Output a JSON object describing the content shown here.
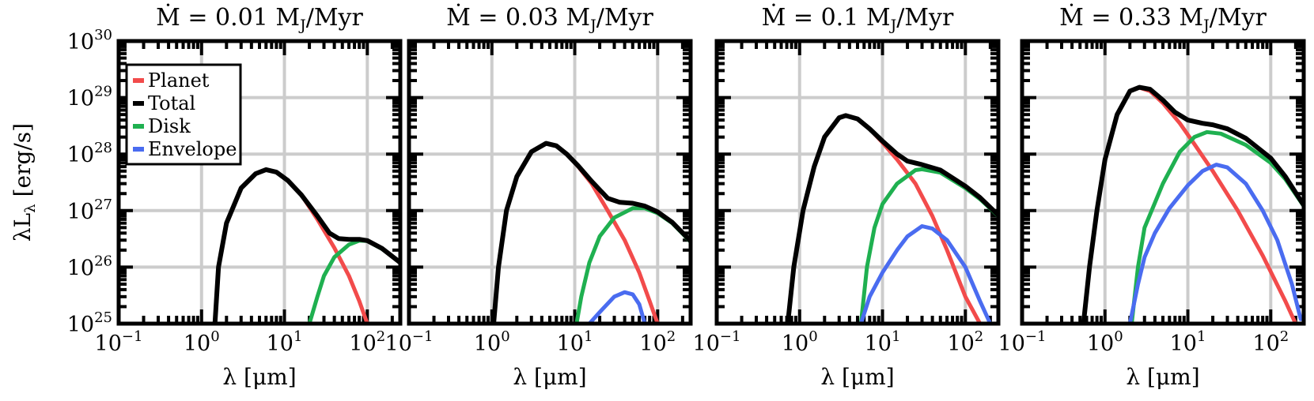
{
  "chart_data": [
    {
      "type": "line",
      "title_prefix": "Ṁ = 0.01",
      "title_unit": "M",
      "title_sub": "J",
      "title_suffix": "/Myr",
      "xlabel": "λ [μm]",
      "ylabel": "λL",
      "ylabel_sub": "λ",
      "ylabel_units": "[erg/s]",
      "xscale": "log",
      "yscale": "log",
      "xlim": [
        0.1,
        250
      ],
      "ylim": [
        1e+25,
        1e+30
      ],
      "xticks": [
        {
          "base": "10",
          "exp": "−1",
          "v": 0.1
        },
        {
          "base": "10",
          "exp": "0",
          "v": 1
        },
        {
          "base": "10",
          "exp": "1",
          "v": 10
        },
        {
          "base": "10",
          "exp": "2",
          "v": 100
        }
      ],
      "yticks": [
        {
          "base": "10",
          "exp": "25",
          "v": 1e+25
        },
        {
          "base": "10",
          "exp": "26",
          "v": 1e+26
        },
        {
          "base": "10",
          "exp": "27",
          "v": 1e+27
        },
        {
          "base": "10",
          "exp": "28",
          "v": 1e+28
        },
        {
          "base": "10",
          "exp": "29",
          "v": 1e+29
        },
        {
          "base": "10",
          "exp": "30",
          "v": 1e+30
        }
      ],
      "grid": true,
      "legend": {
        "position": "top-left",
        "entries": [
          "Planet",
          "Total",
          "Disk",
          "Envelope"
        ]
      },
      "series": [
        {
          "name": "Planet",
          "color": "#f24b4b",
          "points": [
            [
              1.45,
              1e+25
            ],
            [
              1.6,
              1e+26
            ],
            [
              2,
              6e+26
            ],
            [
              3,
              2.5e+27
            ],
            [
              4.5,
              4.5e+27
            ],
            [
              6,
              5.3e+27
            ],
            [
              8,
              4.8e+27
            ],
            [
              11,
              3.4e+27
            ],
            [
              16,
              1.9e+27
            ],
            [
              25,
              7e+26
            ],
            [
              40,
              2.2e+26
            ],
            [
              60,
              7e+25
            ],
            [
              80,
              2.5e+25
            ],
            [
              100,
              1e+25
            ]
          ]
        },
        {
          "name": "Disk",
          "color": "#1fb050",
          "points": [
            [
              20,
              1e+25
            ],
            [
              25,
              3e+25
            ],
            [
              30,
              7e+25
            ],
            [
              40,
              1.5e+26
            ],
            [
              60,
              2.5e+26
            ],
            [
              80,
              2.95e+26
            ],
            [
              100,
              2.9e+26
            ],
            [
              150,
              2.1e+26
            ],
            [
              250,
              1.2e+26
            ]
          ]
        },
        {
          "name": "Envelope",
          "color": "#4a6cf0",
          "points": []
        },
        {
          "name": "Total",
          "color": "#000000",
          "points": [
            [
              1.45,
              1e+25
            ],
            [
              1.6,
              1e+26
            ],
            [
              2,
              6e+26
            ],
            [
              3,
              2.5e+27
            ],
            [
              4.5,
              4.5e+27
            ],
            [
              6,
              5.3e+27
            ],
            [
              8,
              4.8e+27
            ],
            [
              11,
              3.4e+27
            ],
            [
              16,
              1.9e+27
            ],
            [
              25,
              8e+26
            ],
            [
              35,
              4e+26
            ],
            [
              45,
              3.2e+26
            ],
            [
              60,
              3.1e+26
            ],
            [
              80,
              3.1e+26
            ],
            [
              100,
              2.95e+26
            ],
            [
              150,
              2.15e+26
            ],
            [
              250,
              1.2e+26
            ]
          ]
        }
      ]
    },
    {
      "type": "line",
      "title_prefix": "Ṁ = 0.03",
      "title_unit": "M",
      "title_sub": "J",
      "title_suffix": "/Myr",
      "xlabel": "λ [μm]",
      "xscale": "log",
      "yscale": "log",
      "xlim": [
        0.1,
        250
      ],
      "ylim": [
        1e+25,
        1e+30
      ],
      "xticks": [
        {
          "base": "10",
          "exp": "−1",
          "v": 0.1
        },
        {
          "base": "10",
          "exp": "0",
          "v": 1
        },
        {
          "base": "10",
          "exp": "1",
          "v": 10
        },
        {
          "base": "10",
          "exp": "2",
          "v": 100
        }
      ],
      "grid": true,
      "series": [
        {
          "name": "Planet",
          "color": "#f24b4b",
          "points": [
            [
              1.05,
              1e+25
            ],
            [
              1.2,
              1e+26
            ],
            [
              1.5,
              1e+27
            ],
            [
              2,
              4e+27
            ],
            [
              3,
              1.1e+28
            ],
            [
              4.5,
              1.55e+28
            ],
            [
              6,
              1.4e+28
            ],
            [
              8,
              1e+28
            ],
            [
              11,
              6e+27
            ],
            [
              16,
              3e+27
            ],
            [
              25,
              1e+27
            ],
            [
              40,
              3e+26
            ],
            [
              60,
              8e+25
            ],
            [
              80,
              2.5e+25
            ],
            [
              100,
              1e+25
            ]
          ]
        },
        {
          "name": "Disk",
          "color": "#1fb050",
          "points": [
            [
              10.5,
              1e+25
            ],
            [
              12,
              3e+25
            ],
            [
              15,
              1.2e+26
            ],
            [
              20,
              3.5e+26
            ],
            [
              30,
              7.5e+26
            ],
            [
              50,
              1.1e+27
            ],
            [
              70,
              1.1e+27
            ],
            [
              100,
              9e+26
            ],
            [
              150,
              6e+26
            ],
            [
              250,
              2.8e+26
            ]
          ]
        },
        {
          "name": "Envelope",
          "color": "#4a6cf0",
          "points": [
            [
              15,
              1e+25
            ],
            [
              20,
              1.6e+25
            ],
            [
              30,
              3e+25
            ],
            [
              40,
              3.6e+25
            ],
            [
              50,
              3.3e+25
            ],
            [
              60,
              2.2e+25
            ],
            [
              70,
              1e+25
            ]
          ]
        },
        {
          "name": "Total",
          "color": "#000000",
          "points": [
            [
              1.05,
              1e+25
            ],
            [
              1.2,
              1e+26
            ],
            [
              1.5,
              1e+27
            ],
            [
              2,
              4e+27
            ],
            [
              3,
              1.1e+28
            ],
            [
              4.5,
              1.55e+28
            ],
            [
              6,
              1.4e+28
            ],
            [
              8,
              1e+28
            ],
            [
              11,
              6.2e+27
            ],
            [
              16,
              3.3e+27
            ],
            [
              25,
              1.65e+27
            ],
            [
              35,
              1.4e+27
            ],
            [
              50,
              1.35e+27
            ],
            [
              70,
              1.2e+27
            ],
            [
              100,
              9.5e+26
            ],
            [
              150,
              6.2e+26
            ],
            [
              250,
              2.9e+26
            ]
          ]
        }
      ]
    },
    {
      "type": "line",
      "title_prefix": "Ṁ = 0.1",
      "title_unit": "M",
      "title_sub": "J",
      "title_suffix": "/Myr",
      "xlabel": "λ [μm]",
      "xscale": "log",
      "yscale": "log",
      "xlim": [
        0.1,
        250
      ],
      "ylim": [
        1e+25,
        1e+30
      ],
      "xticks": [
        {
          "base": "10",
          "exp": "−1",
          "v": 0.1
        },
        {
          "base": "10",
          "exp": "0",
          "v": 1
        },
        {
          "base": "10",
          "exp": "1",
          "v": 10
        },
        {
          "base": "10",
          "exp": "2",
          "v": 100
        }
      ],
      "grid": true,
      "series": [
        {
          "name": "Planet",
          "color": "#f24b4b",
          "points": [
            [
              0.72,
              1e+25
            ],
            [
              0.85,
              1e+26
            ],
            [
              1.1,
              1e+27
            ],
            [
              1.5,
              6e+27
            ],
            [
              2,
              2e+28
            ],
            [
              3,
              4.4e+28
            ],
            [
              3.6,
              4.8e+28
            ],
            [
              5,
              4.2e+28
            ],
            [
              7,
              2.8e+28
            ],
            [
              10,
              1.6e+28
            ],
            [
              15,
              8e+27
            ],
            [
              25,
              3e+27
            ],
            [
              40,
              8e+26
            ],
            [
              60,
              2e+26
            ],
            [
              100,
              3e+25
            ],
            [
              150,
              1e+25
            ]
          ]
        },
        {
          "name": "Disk",
          "color": "#1fb050",
          "points": [
            [
              5.5,
              1e+25
            ],
            [
              6.5,
              1e+26
            ],
            [
              8,
              5e+26
            ],
            [
              10,
              1.3e+27
            ],
            [
              15,
              3e+27
            ],
            [
              25,
              5.2e+27
            ],
            [
              30,
              5.4e+27
            ],
            [
              50,
              4.7e+27
            ],
            [
              100,
              2.5e+27
            ],
            [
              150,
              1.6e+27
            ],
            [
              250,
              8e+26
            ]
          ]
        },
        {
          "name": "Envelope",
          "color": "#4a6cf0",
          "points": [
            [
              5.5,
              1e+25
            ],
            [
              7,
              3e+25
            ],
            [
              10,
              8e+25
            ],
            [
              15,
              2e+26
            ],
            [
              20,
              3.5e+26
            ],
            [
              30,
              5.3e+26
            ],
            [
              40,
              4.8e+26
            ],
            [
              60,
              3e+26
            ],
            [
              100,
              1e+26
            ],
            [
              150,
              2.5e+25
            ],
            [
              200,
              1e+25
            ]
          ]
        },
        {
          "name": "Total",
          "color": "#000000",
          "points": [
            [
              0.72,
              1e+25
            ],
            [
              0.85,
              1e+26
            ],
            [
              1.1,
              1e+27
            ],
            [
              1.5,
              6e+27
            ],
            [
              2,
              2e+28
            ],
            [
              3,
              4.4e+28
            ],
            [
              3.6,
              4.8e+28
            ],
            [
              5,
              4.2e+28
            ],
            [
              7,
              2.8e+28
            ],
            [
              10,
              1.7e+28
            ],
            [
              15,
              1e+28
            ],
            [
              20,
              7.5e+27
            ],
            [
              30,
              6.5e+27
            ],
            [
              50,
              5.2e+27
            ],
            [
              100,
              2.7e+27
            ],
            [
              150,
              1.7e+27
            ],
            [
              250,
              8.3e+26
            ]
          ]
        }
      ]
    },
    {
      "type": "line",
      "title_prefix": "Ṁ = 0.33",
      "title_unit": "M",
      "title_sub": "J",
      "title_suffix": "/Myr",
      "xlabel": "λ [μm]",
      "xscale": "log",
      "yscale": "log",
      "xlim": [
        0.1,
        250
      ],
      "ylim": [
        1e+25,
        1e+30
      ],
      "xticks": [
        {
          "base": "10",
          "exp": "−1",
          "v": 0.1
        },
        {
          "base": "10",
          "exp": "0",
          "v": 1
        },
        {
          "base": "10",
          "exp": "1",
          "v": 10
        },
        {
          "base": "10",
          "exp": "2",
          "v": 100
        }
      ],
      "grid": true,
      "series": [
        {
          "name": "Planet",
          "color": "#f24b4b",
          "points": [
            [
              0.55,
              1e+25
            ],
            [
              0.65,
              1e+26
            ],
            [
              0.8,
              1e+27
            ],
            [
              1,
              8e+27
            ],
            [
              1.4,
              5e+28
            ],
            [
              2,
              1.3e+29
            ],
            [
              2.6,
              1.5e+29
            ],
            [
              3.5,
              1.3e+29
            ],
            [
              5,
              8e+28
            ],
            [
              8,
              3.5e+28
            ],
            [
              12,
              1.5e+28
            ],
            [
              20,
              5e+27
            ],
            [
              40,
              1e+27
            ],
            [
              80,
              1.6e+26
            ],
            [
              150,
              2.5e+25
            ],
            [
              200,
              1e+25
            ]
          ]
        },
        {
          "name": "Disk",
          "color": "#1fb050",
          "points": [
            [
              2.1,
              1e+25
            ],
            [
              2.5,
              1e+26
            ],
            [
              3,
              5e+26
            ],
            [
              5,
              3e+27
            ],
            [
              8,
              1.1e+28
            ],
            [
              12,
              2e+28
            ],
            [
              17,
              2.45e+28
            ],
            [
              25,
              2.3e+28
            ],
            [
              50,
              1.45e+28
            ],
            [
              100,
              7e+27
            ],
            [
              150,
              3.6e+27
            ],
            [
              250,
              1.2e+27
            ]
          ]
        },
        {
          "name": "Envelope",
          "color": "#4a6cf0",
          "points": [
            [
              2,
              1e+25
            ],
            [
              2.5,
              5e+25
            ],
            [
              3,
              1.5e+26
            ],
            [
              4,
              4e+26
            ],
            [
              6,
              1.1e+27
            ],
            [
              10,
              2.8e+27
            ],
            [
              15,
              5e+27
            ],
            [
              22,
              6.5e+27
            ],
            [
              30,
              5.8e+27
            ],
            [
              50,
              3e+27
            ],
            [
              80,
              1e+27
            ],
            [
              120,
              3e+26
            ],
            [
              180,
              5e+25
            ],
            [
              230,
              1.2e+25
            ]
          ]
        },
        {
          "name": "Total",
          "color": "#000000",
          "points": [
            [
              0.55,
              1e+25
            ],
            [
              0.65,
              1e+26
            ],
            [
              0.8,
              1e+27
            ],
            [
              1,
              8e+27
            ],
            [
              1.4,
              5e+28
            ],
            [
              2,
              1.3e+29
            ],
            [
              2.6,
              1.52e+29
            ],
            [
              3.5,
              1.4e+29
            ],
            [
              5,
              9e+28
            ],
            [
              7,
              5.5e+28
            ],
            [
              10,
              4e+28
            ],
            [
              15,
              3.5e+28
            ],
            [
              20,
              3.3e+28
            ],
            [
              30,
              2.8e+28
            ],
            [
              50,
              1.9e+28
            ],
            [
              100,
              8.5e+27
            ],
            [
              150,
              4e+27
            ],
            [
              250,
              1.25e+27
            ]
          ]
        }
      ]
    }
  ]
}
